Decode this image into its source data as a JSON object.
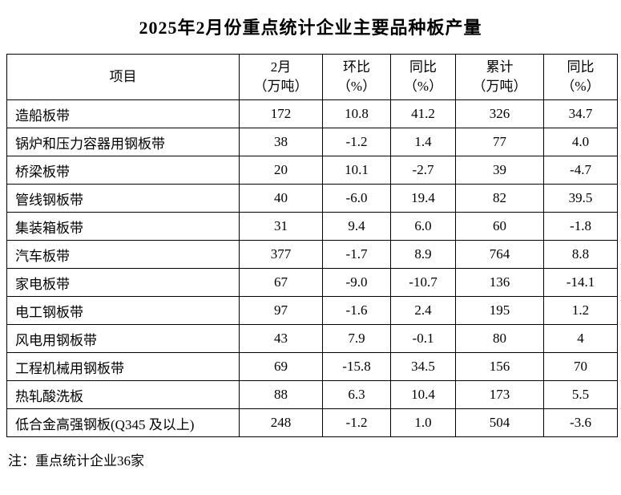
{
  "title": "2025年2月份重点统计企业主要品种板产量",
  "note": "注：重点统计企业36家",
  "colors": {
    "background": "#ffffff",
    "text": "#000000",
    "border": "#000000"
  },
  "table": {
    "headers": [
      {
        "line1": "项目",
        "line2": ""
      },
      {
        "line1": "2月",
        "line2": "（万吨）"
      },
      {
        "line1": "环比",
        "line2": "（%）"
      },
      {
        "line1": "同比",
        "line2": "（%）"
      },
      {
        "line1": "累计",
        "line2": "（万吨）"
      },
      {
        "line1": "同比",
        "line2": "（%）"
      }
    ],
    "rows": [
      {
        "label": "造船板带",
        "feb": "172",
        "mom": "10.8",
        "yoy": "41.2",
        "cum": "326",
        "cum_yoy": "34.7"
      },
      {
        "label": "锅炉和压力容器用钢板带",
        "feb": "38",
        "mom": "-1.2",
        "yoy": "1.4",
        "cum": "77",
        "cum_yoy": "4.0"
      },
      {
        "label": "桥梁板带",
        "feb": "20",
        "mom": "10.1",
        "yoy": "-2.7",
        "cum": "39",
        "cum_yoy": "-4.7"
      },
      {
        "label": "管线钢板带",
        "feb": "40",
        "mom": "-6.0",
        "yoy": "19.4",
        "cum": "82",
        "cum_yoy": "39.5"
      },
      {
        "label": "集装箱板带",
        "feb": "31",
        "mom": "9.4",
        "yoy": "6.0",
        "cum": "60",
        "cum_yoy": "-1.8"
      },
      {
        "label": "汽车板带",
        "feb": "377",
        "mom": "-1.7",
        "yoy": "8.9",
        "cum": "764",
        "cum_yoy": "8.8"
      },
      {
        "label": "家电板带",
        "feb": "67",
        "mom": "-9.0",
        "yoy": "-10.7",
        "cum": "136",
        "cum_yoy": "-14.1"
      },
      {
        "label": "电工钢板带",
        "feb": "97",
        "mom": "-1.6",
        "yoy": "2.4",
        "cum": "195",
        "cum_yoy": "1.2"
      },
      {
        "label": "风电用钢板带",
        "feb": "43",
        "mom": "7.9",
        "yoy": "-0.1",
        "cum": "80",
        "cum_yoy": "4"
      },
      {
        "label": "工程机械用钢板带",
        "feb": "69",
        "mom": "-15.8",
        "yoy": "34.5",
        "cum": "156",
        "cum_yoy": "70"
      },
      {
        "label": "热轧酸洗板",
        "feb": "88",
        "mom": "6.3",
        "yoy": "10.4",
        "cum": "173",
        "cum_yoy": "5.5"
      },
      {
        "label": "低合金高强钢板(Q345 及以上)",
        "feb": "248",
        "mom": "-1.2",
        "yoy": "1.0",
        "cum": "504",
        "cum_yoy": "-3.6"
      }
    ]
  }
}
